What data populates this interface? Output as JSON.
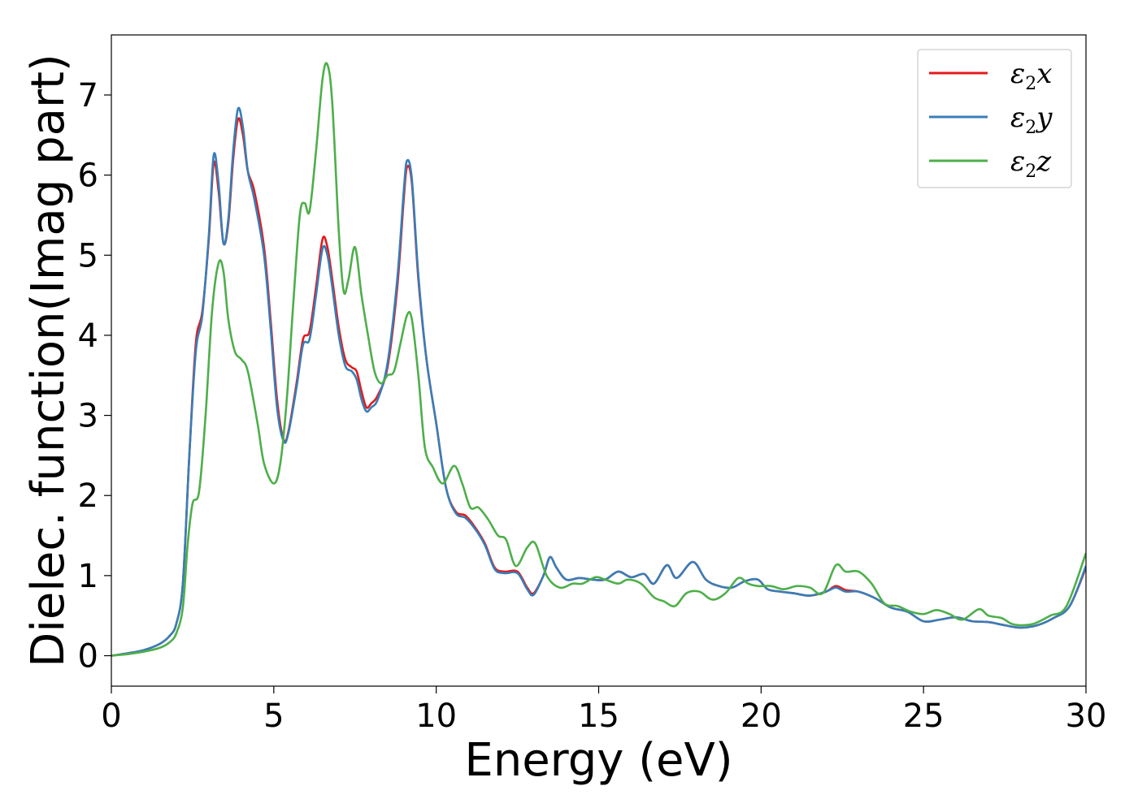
{
  "chart_data": {
    "type": "line",
    "xlabel": "Energy (eV)",
    "ylabel": "Dielec. function(Imag part)",
    "xlim": [
      0,
      30
    ],
    "ylim": [
      -0.38,
      7.75
    ],
    "xticks": [
      0,
      5,
      10,
      15,
      20,
      25,
      30
    ],
    "yticks": [
      0,
      1,
      2,
      3,
      4,
      5,
      6,
      7
    ],
    "grid": false,
    "legend_position": "top-right",
    "series": [
      {
        "name": "ε₂x",
        "legend_base": "ε",
        "legend_sub": "2",
        "legend_var": "x",
        "color": "#e41a1c",
        "points": [
          [
            0,
            0
          ],
          [
            0.5,
            0.03
          ],
          [
            1,
            0.07
          ],
          [
            1.5,
            0.15
          ],
          [
            1.8,
            0.25
          ],
          [
            2.0,
            0.4
          ],
          [
            2.2,
            0.9
          ],
          [
            2.4,
            2.5
          ],
          [
            2.6,
            3.9
          ],
          [
            2.8,
            4.3
          ],
          [
            3.0,
            5.2
          ],
          [
            3.15,
            6.15
          ],
          [
            3.3,
            5.8
          ],
          [
            3.45,
            5.15
          ],
          [
            3.6,
            5.4
          ],
          [
            3.75,
            6.2
          ],
          [
            3.9,
            6.7
          ],
          [
            4.05,
            6.5
          ],
          [
            4.2,
            6.05
          ],
          [
            4.4,
            5.8
          ],
          [
            4.7,
            5.1
          ],
          [
            4.9,
            4.2
          ],
          [
            5.1,
            3.2
          ],
          [
            5.3,
            2.7
          ],
          [
            5.45,
            2.8
          ],
          [
            5.7,
            3.4
          ],
          [
            5.9,
            3.95
          ],
          [
            6.1,
            4.05
          ],
          [
            6.3,
            4.6
          ],
          [
            6.5,
            5.2
          ],
          [
            6.65,
            5.1
          ],
          [
            6.8,
            4.7
          ],
          [
            7.0,
            4.1
          ],
          [
            7.2,
            3.7
          ],
          [
            7.4,
            3.6
          ],
          [
            7.55,
            3.55
          ],
          [
            7.7,
            3.3
          ],
          [
            7.85,
            3.1
          ],
          [
            8.0,
            3.15
          ],
          [
            8.2,
            3.25
          ],
          [
            8.5,
            3.6
          ],
          [
            8.8,
            4.6
          ],
          [
            9.0,
            5.7
          ],
          [
            9.1,
            6.1
          ],
          [
            9.25,
            5.9
          ],
          [
            9.45,
            4.7
          ],
          [
            9.7,
            3.7
          ],
          [
            10.0,
            2.9
          ],
          [
            10.3,
            2.1
          ],
          [
            10.6,
            1.8
          ],
          [
            10.9,
            1.75
          ],
          [
            11.2,
            1.6
          ],
          [
            11.5,
            1.4
          ],
          [
            11.8,
            1.1
          ],
          [
            12.1,
            1.05
          ],
          [
            12.5,
            1.05
          ],
          [
            12.8,
            0.85
          ],
          [
            13.0,
            0.78
          ],
          [
            13.3,
            1.0
          ],
          [
            13.5,
            1.23
          ],
          [
            13.7,
            1.1
          ],
          [
            14.0,
            0.95
          ],
          [
            14.4,
            0.97
          ],
          [
            14.8,
            0.95
          ],
          [
            15.2,
            0.95
          ],
          [
            15.6,
            1.05
          ],
          [
            16.0,
            0.98
          ],
          [
            16.4,
            1.02
          ],
          [
            16.7,
            0.9
          ],
          [
            17.1,
            1.13
          ],
          [
            17.4,
            0.97
          ],
          [
            17.9,
            1.17
          ],
          [
            18.3,
            0.95
          ],
          [
            18.7,
            0.87
          ],
          [
            19.1,
            0.85
          ],
          [
            19.5,
            0.93
          ],
          [
            19.9,
            0.95
          ],
          [
            20.2,
            0.83
          ],
          [
            20.6,
            0.8
          ],
          [
            21.0,
            0.78
          ],
          [
            21.5,
            0.75
          ],
          [
            22.0,
            0.8
          ],
          [
            22.3,
            0.87
          ],
          [
            22.6,
            0.82
          ],
          [
            23.0,
            0.8
          ],
          [
            23.5,
            0.72
          ],
          [
            24.0,
            0.6
          ],
          [
            24.5,
            0.55
          ],
          [
            25.0,
            0.43
          ],
          [
            25.5,
            0.45
          ],
          [
            26.0,
            0.48
          ],
          [
            26.5,
            0.43
          ],
          [
            27.0,
            0.42
          ],
          [
            27.5,
            0.38
          ],
          [
            28.0,
            0.35
          ],
          [
            28.5,
            0.38
          ],
          [
            29.0,
            0.47
          ],
          [
            29.5,
            0.62
          ],
          [
            30.0,
            1.1
          ]
        ]
      },
      {
        "name": "ε₂y",
        "legend_base": "ε",
        "legend_sub": "2",
        "legend_var": "y",
        "color": "#377eb8",
        "points": [
          [
            0,
            0
          ],
          [
            0.5,
            0.03
          ],
          [
            1,
            0.07
          ],
          [
            1.5,
            0.15
          ],
          [
            1.8,
            0.25
          ],
          [
            2.0,
            0.4
          ],
          [
            2.2,
            0.9
          ],
          [
            2.4,
            2.5
          ],
          [
            2.6,
            3.8
          ],
          [
            2.8,
            4.25
          ],
          [
            3.0,
            5.25
          ],
          [
            3.15,
            6.25
          ],
          [
            3.3,
            5.9
          ],
          [
            3.45,
            5.15
          ],
          [
            3.6,
            5.45
          ],
          [
            3.75,
            6.3
          ],
          [
            3.9,
            6.83
          ],
          [
            4.05,
            6.6
          ],
          [
            4.2,
            6.05
          ],
          [
            4.4,
            5.7
          ],
          [
            4.7,
            5.0
          ],
          [
            4.9,
            4.1
          ],
          [
            5.1,
            3.1
          ],
          [
            5.3,
            2.68
          ],
          [
            5.45,
            2.78
          ],
          [
            5.7,
            3.35
          ],
          [
            5.9,
            3.88
          ],
          [
            6.1,
            3.95
          ],
          [
            6.3,
            4.5
          ],
          [
            6.5,
            5.08
          ],
          [
            6.65,
            5.0
          ],
          [
            6.8,
            4.6
          ],
          [
            7.0,
            4.0
          ],
          [
            7.2,
            3.62
          ],
          [
            7.4,
            3.55
          ],
          [
            7.55,
            3.45
          ],
          [
            7.7,
            3.2
          ],
          [
            7.85,
            3.05
          ],
          [
            8.0,
            3.1
          ],
          [
            8.2,
            3.2
          ],
          [
            8.5,
            3.65
          ],
          [
            8.8,
            4.7
          ],
          [
            9.0,
            5.8
          ],
          [
            9.1,
            6.18
          ],
          [
            9.25,
            5.95
          ],
          [
            9.45,
            4.75
          ],
          [
            9.7,
            3.7
          ],
          [
            10.0,
            2.9
          ],
          [
            10.3,
            2.1
          ],
          [
            10.6,
            1.78
          ],
          [
            10.9,
            1.72
          ],
          [
            11.2,
            1.58
          ],
          [
            11.5,
            1.38
          ],
          [
            11.8,
            1.08
          ],
          [
            12.1,
            1.03
          ],
          [
            12.5,
            1.03
          ],
          [
            12.8,
            0.83
          ],
          [
            13.0,
            0.76
          ],
          [
            13.3,
            1.0
          ],
          [
            13.5,
            1.23
          ],
          [
            13.7,
            1.1
          ],
          [
            14.0,
            0.95
          ],
          [
            14.4,
            0.97
          ],
          [
            14.8,
            0.95
          ],
          [
            15.2,
            0.95
          ],
          [
            15.6,
            1.05
          ],
          [
            16.0,
            0.98
          ],
          [
            16.4,
            1.02
          ],
          [
            16.7,
            0.9
          ],
          [
            17.1,
            1.13
          ],
          [
            17.4,
            0.97
          ],
          [
            17.9,
            1.17
          ],
          [
            18.3,
            0.95
          ],
          [
            18.7,
            0.87
          ],
          [
            19.1,
            0.85
          ],
          [
            19.5,
            0.93
          ],
          [
            19.9,
            0.95
          ],
          [
            20.2,
            0.83
          ],
          [
            20.6,
            0.8
          ],
          [
            21.0,
            0.78
          ],
          [
            21.5,
            0.75
          ],
          [
            22.0,
            0.8
          ],
          [
            22.3,
            0.85
          ],
          [
            22.6,
            0.8
          ],
          [
            23.0,
            0.8
          ],
          [
            23.5,
            0.72
          ],
          [
            24.0,
            0.6
          ],
          [
            24.5,
            0.55
          ],
          [
            25.0,
            0.43
          ],
          [
            25.5,
            0.45
          ],
          [
            26.0,
            0.48
          ],
          [
            26.5,
            0.43
          ],
          [
            27.0,
            0.42
          ],
          [
            27.5,
            0.38
          ],
          [
            28.0,
            0.35
          ],
          [
            28.5,
            0.38
          ],
          [
            29.0,
            0.47
          ],
          [
            29.5,
            0.62
          ],
          [
            30.0,
            1.12
          ]
        ]
      },
      {
        "name": "ε₂z",
        "legend_base": "ε",
        "legend_sub": "2",
        "legend_var": "z",
        "color": "#4daf4a",
        "points": [
          [
            0,
            0
          ],
          [
            0.5,
            0.02
          ],
          [
            1,
            0.05
          ],
          [
            1.5,
            0.1
          ],
          [
            1.8,
            0.17
          ],
          [
            2.0,
            0.28
          ],
          [
            2.2,
            0.6
          ],
          [
            2.35,
            1.4
          ],
          [
            2.5,
            1.9
          ],
          [
            2.7,
            2.05
          ],
          [
            2.9,
            3.0
          ],
          [
            3.1,
            4.3
          ],
          [
            3.3,
            4.9
          ],
          [
            3.45,
            4.8
          ],
          [
            3.6,
            4.2
          ],
          [
            3.8,
            3.8
          ],
          [
            4.0,
            3.7
          ],
          [
            4.2,
            3.55
          ],
          [
            4.5,
            2.9
          ],
          [
            4.7,
            2.4
          ],
          [
            5.0,
            2.15
          ],
          [
            5.2,
            2.4
          ],
          [
            5.4,
            3.2
          ],
          [
            5.6,
            4.4
          ],
          [
            5.8,
            5.5
          ],
          [
            5.95,
            5.65
          ],
          [
            6.1,
            5.55
          ],
          [
            6.3,
            6.3
          ],
          [
            6.5,
            7.2
          ],
          [
            6.65,
            7.38
          ],
          [
            6.8,
            6.9
          ],
          [
            7.0,
            5.3
          ],
          [
            7.15,
            4.55
          ],
          [
            7.3,
            4.7
          ],
          [
            7.5,
            5.1
          ],
          [
            7.7,
            4.5
          ],
          [
            7.9,
            4.0
          ],
          [
            8.1,
            3.55
          ],
          [
            8.3,
            3.4
          ],
          [
            8.5,
            3.5
          ],
          [
            8.7,
            3.55
          ],
          [
            8.9,
            3.9
          ],
          [
            9.1,
            4.25
          ],
          [
            9.25,
            4.2
          ],
          [
            9.45,
            3.5
          ],
          [
            9.65,
            2.6
          ],
          [
            9.9,
            2.35
          ],
          [
            10.2,
            2.15
          ],
          [
            10.55,
            2.37
          ],
          [
            10.8,
            2.15
          ],
          [
            11.05,
            1.85
          ],
          [
            11.3,
            1.85
          ],
          [
            11.6,
            1.7
          ],
          [
            11.9,
            1.5
          ],
          [
            12.15,
            1.45
          ],
          [
            12.45,
            1.12
          ],
          [
            12.8,
            1.35
          ],
          [
            13.05,
            1.4
          ],
          [
            13.4,
            1.0
          ],
          [
            13.8,
            0.85
          ],
          [
            14.2,
            0.9
          ],
          [
            14.5,
            0.9
          ],
          [
            14.9,
            0.98
          ],
          [
            15.2,
            0.95
          ],
          [
            15.6,
            0.9
          ],
          [
            15.9,
            0.95
          ],
          [
            16.3,
            0.9
          ],
          [
            16.7,
            0.73
          ],
          [
            17.0,
            0.68
          ],
          [
            17.35,
            0.62
          ],
          [
            17.7,
            0.78
          ],
          [
            18.1,
            0.8
          ],
          [
            18.5,
            0.7
          ],
          [
            18.9,
            0.78
          ],
          [
            19.3,
            0.97
          ],
          [
            19.6,
            0.9
          ],
          [
            19.9,
            0.87
          ],
          [
            20.3,
            0.87
          ],
          [
            20.7,
            0.83
          ],
          [
            21.1,
            0.87
          ],
          [
            21.5,
            0.85
          ],
          [
            21.9,
            0.78
          ],
          [
            22.3,
            1.13
          ],
          [
            22.6,
            1.05
          ],
          [
            23.0,
            1.05
          ],
          [
            23.4,
            0.9
          ],
          [
            23.8,
            0.65
          ],
          [
            24.2,
            0.62
          ],
          [
            24.6,
            0.55
          ],
          [
            25.0,
            0.52
          ],
          [
            25.4,
            0.57
          ],
          [
            25.8,
            0.52
          ],
          [
            26.2,
            0.45
          ],
          [
            26.7,
            0.58
          ],
          [
            27.0,
            0.5
          ],
          [
            27.4,
            0.47
          ],
          [
            27.7,
            0.4
          ],
          [
            28.0,
            0.38
          ],
          [
            28.4,
            0.4
          ],
          [
            28.9,
            0.5
          ],
          [
            29.4,
            0.62
          ],
          [
            30.0,
            1.28
          ]
        ]
      }
    ]
  }
}
